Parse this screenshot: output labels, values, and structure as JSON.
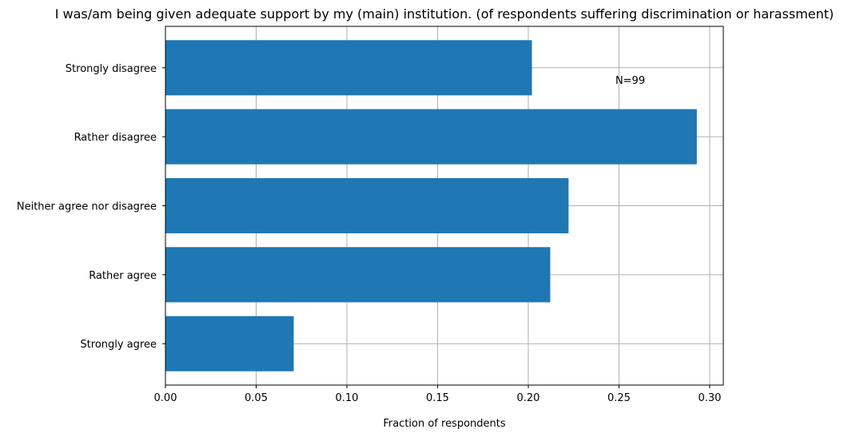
{
  "chart_data": {
    "type": "bar",
    "orientation": "horizontal",
    "title": "I was/am being given adequate support by my (main) institution. (of respondents suffering discrimination or harassment)",
    "xlabel": "Fraction of respondents",
    "ylabel": "",
    "categories": [
      "Strongly agree",
      "Rather agree",
      "Neither agree nor disagree",
      "Rather disagree",
      "Strongly disagree"
    ],
    "values": [
      0.0707,
      0.2121,
      0.2222,
      0.2929,
      0.202
    ],
    "xlim": [
      0.0,
      0.3075
    ],
    "xticks": [
      0.0,
      0.05,
      0.1,
      0.15,
      0.2,
      0.25,
      0.3
    ],
    "xtick_labels": [
      "0.00",
      "0.05",
      "0.10",
      "0.15",
      "0.20",
      "0.25",
      "0.30"
    ],
    "grid": true,
    "bar_color": "#1f77b4",
    "annotation": {
      "text": "N=99",
      "x": 0.248,
      "y": "Strongly disagree"
    }
  }
}
